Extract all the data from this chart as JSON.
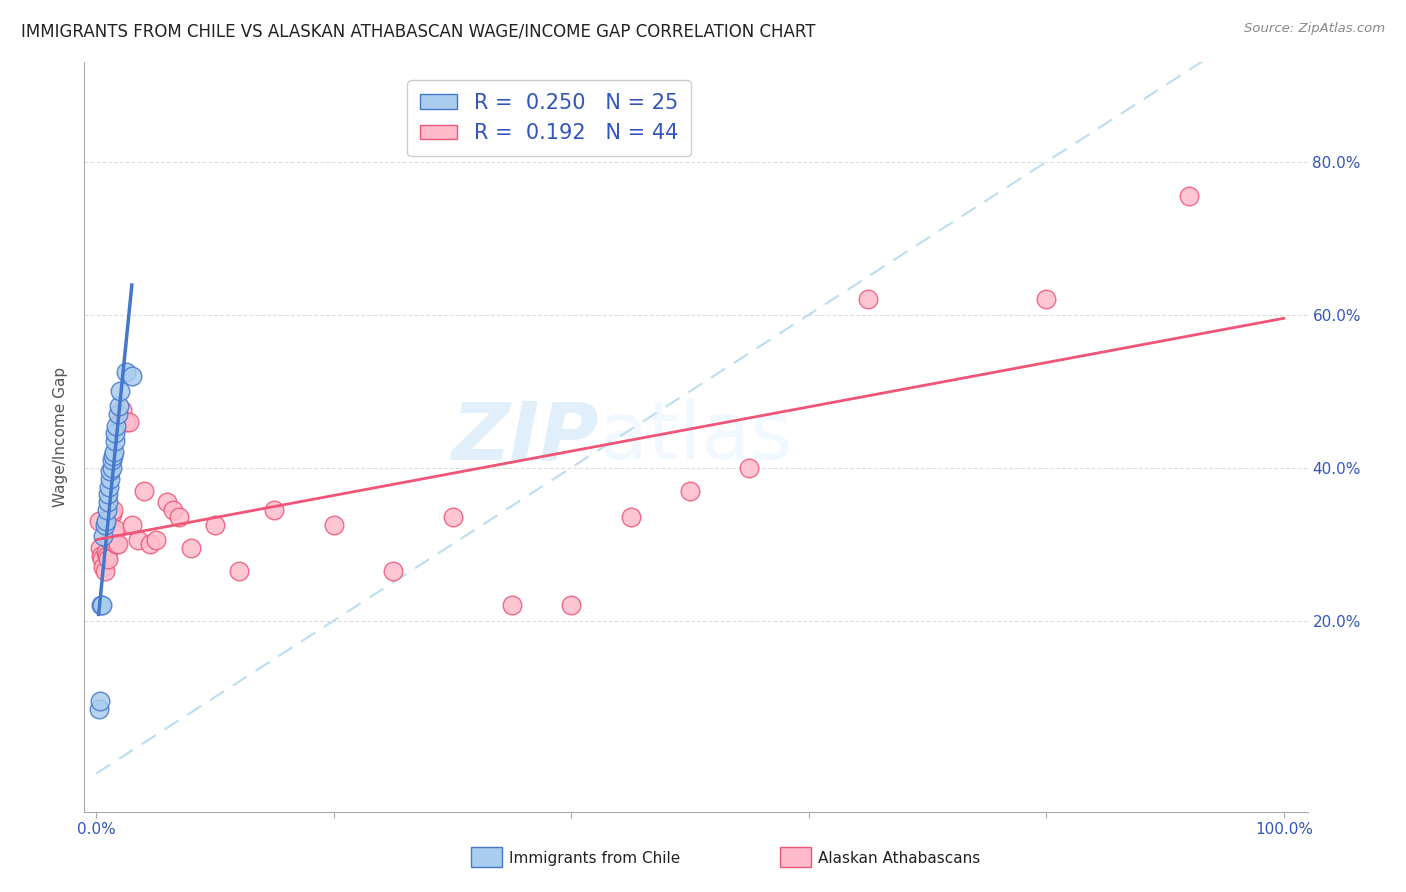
{
  "title": "IMMIGRANTS FROM CHILE VS ALASKAN ATHABASCAN WAGE/INCOME GAP CORRELATION CHART",
  "source": "Source: ZipAtlas.com",
  "ylabel": "Wage/Income Gap",
  "legend_R1": "0.250",
  "legend_N1": "25",
  "legend_R2": "0.192",
  "legend_N2": "44",
  "color_chile": "#aaccee",
  "color_athabascan": "#ffbbcc",
  "color_chile_line": "#4477cc",
  "color_athabascan_line": "#ee5577",
  "color_diagonal": "#bbddee",
  "watermark_zip": "ZIP",
  "watermark_atlas": "atlas",
  "chile_x": [
    0.002,
    0.003,
    0.004,
    0.005,
    0.006,
    0.007,
    0.008,
    0.009,
    0.01,
    0.01,
    0.011,
    0.012,
    0.012,
    0.013,
    0.013,
    0.014,
    0.015,
    0.016,
    0.016,
    0.017,
    0.018,
    0.019,
    0.02,
    0.025,
    0.03
  ],
  "chile_y": [
    0.085,
    0.095,
    0.22,
    0.22,
    0.31,
    0.325,
    0.33,
    0.345,
    0.355,
    0.365,
    0.375,
    0.385,
    0.395,
    0.4,
    0.41,
    0.415,
    0.42,
    0.435,
    0.445,
    0.455,
    0.47,
    0.48,
    0.5,
    0.525,
    0.52
  ],
  "athabascan_x": [
    0.002,
    0.003,
    0.004,
    0.005,
    0.006,
    0.007,
    0.008,
    0.009,
    0.01,
    0.011,
    0.012,
    0.013,
    0.014,
    0.015,
    0.016,
    0.017,
    0.018,
    0.02,
    0.022,
    0.025,
    0.028,
    0.03,
    0.035,
    0.04,
    0.045,
    0.05,
    0.06,
    0.065,
    0.07,
    0.08,
    0.1,
    0.12,
    0.15,
    0.2,
    0.25,
    0.3,
    0.35,
    0.4,
    0.45,
    0.5,
    0.55,
    0.65,
    0.8,
    0.92
  ],
  "athabascan_y": [
    0.33,
    0.295,
    0.285,
    0.28,
    0.27,
    0.265,
    0.29,
    0.285,
    0.28,
    0.305,
    0.335,
    0.34,
    0.345,
    0.315,
    0.32,
    0.3,
    0.3,
    0.46,
    0.475,
    0.46,
    0.46,
    0.325,
    0.305,
    0.37,
    0.3,
    0.305,
    0.355,
    0.345,
    0.335,
    0.295,
    0.325,
    0.265,
    0.345,
    0.325,
    0.265,
    0.335,
    0.22,
    0.22,
    0.335,
    0.37,
    0.4,
    0.62,
    0.62,
    0.755
  ],
  "xlim": [
    -0.01,
    1.02
  ],
  "ylim": [
    -0.05,
    0.93
  ],
  "y_ticks": [
    0.2,
    0.4,
    0.6,
    0.8
  ],
  "x_ticks": [
    0.0,
    0.2,
    0.4,
    0.6,
    0.8,
    1.0
  ],
  "grid_color": "#dddddd",
  "title_fontsize": 12,
  "axis_fontsize": 11
}
